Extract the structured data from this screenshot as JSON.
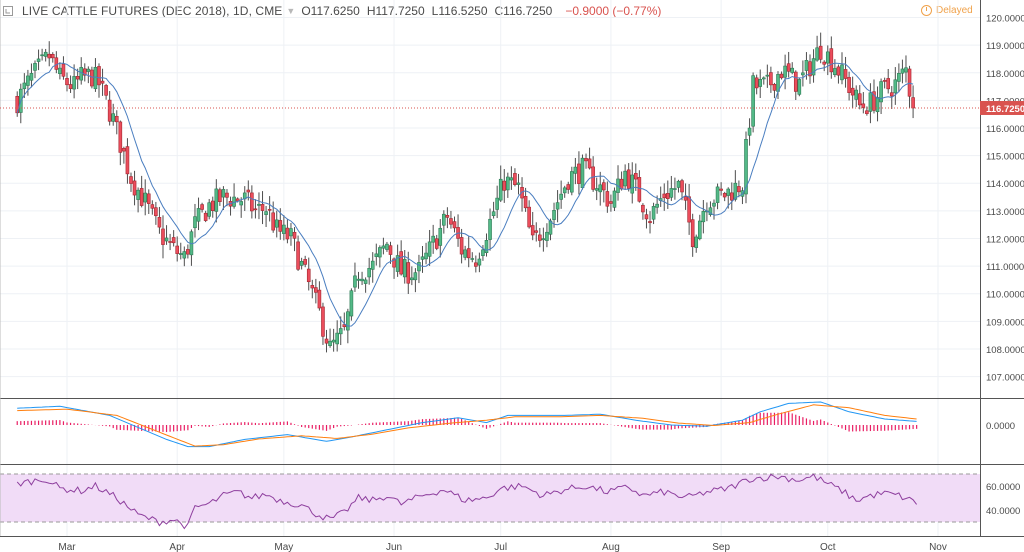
{
  "header": {
    "title": "LIVE CATTLE FUTURES (DEC 2018), 1D, CME",
    "open": "O117.6250",
    "high": "H117.7250",
    "low": "L116.5250",
    "close": "C116.7250",
    "change": "−0.9000 (−0.77%)"
  },
  "status": {
    "delayed": "Delayed"
  },
  "colors": {
    "up": "#53b987",
    "down": "#eb4d5c",
    "up_border": "#2d7a54",
    "down_border": "#a3262f",
    "ma": "#4a7ec0",
    "macd": "#2196f3",
    "signal": "#ff7f0e",
    "hist": "#e91e63",
    "rsi": "#8e3f9e",
    "rsi_band": "#f1dcf7",
    "last_price": "#d9534f"
  },
  "chart_data": [
    {
      "type": "candlestick",
      "title": "LIVE CATTLE FUTURES (DEC 2018), 1D, CME",
      "x_axis_labels": [
        "Mar",
        "Apr",
        "May",
        "Jun",
        "Jul",
        "Aug",
        "Sep",
        "Oct",
        "Nov"
      ],
      "x_label_positions_days": [
        10,
        41,
        71,
        102,
        132,
        163,
        194,
        224,
        255
      ],
      "ylim": [
        106.5,
        120.2
      ],
      "y_ticks": [
        "120.0000",
        "119.0000",
        "118.0000",
        "117.0000",
        "116.0000",
        "115.0000",
        "114.0000",
        "113.0000",
        "112.0000",
        "111.0000",
        "110.0000",
        "109.0000",
        "108.0000",
        "107.0000"
      ],
      "y_tick_values": [
        120,
        119,
        118,
        117,
        116,
        115,
        114,
        113,
        112,
        111,
        110,
        109,
        108,
        107
      ],
      "last_price": 116.725,
      "last_price_label": "116.7250",
      "moving_average_days": 10,
      "close_path": [
        [
          -4,
          117.0
        ],
        [
          0,
          117.8
        ],
        [
          5,
          118.6
        ],
        [
          8,
          117.8
        ],
        [
          12,
          117.5
        ],
        [
          14,
          117.8
        ],
        [
          17,
          117.9
        ],
        [
          19,
          117.6
        ],
        [
          23,
          116.3
        ],
        [
          28,
          114.2
        ],
        [
          32,
          113.3
        ],
        [
          36,
          112.2
        ],
        [
          40,
          111.6
        ],
        [
          43,
          111.3
        ],
        [
          46,
          112.5
        ],
        [
          50,
          113.2
        ],
        [
          54,
          113.5
        ],
        [
          60,
          113.4
        ],
        [
          63,
          113.0
        ],
        [
          66,
          113.1
        ],
        [
          69,
          112.3
        ],
        [
          73,
          112.0
        ],
        [
          76,
          111.0
        ],
        [
          81,
          109.3
        ],
        [
          84,
          108.0
        ],
        [
          88,
          108.6
        ],
        [
          92,
          110.8
        ],
        [
          96,
          111.0
        ],
        [
          100,
          111.8
        ],
        [
          104,
          110.8
        ],
        [
          109,
          110.8
        ],
        [
          113,
          111.8
        ],
        [
          117,
          112.8
        ],
        [
          121,
          111.6
        ],
        [
          125,
          111.3
        ],
        [
          129,
          112.6
        ],
        [
          133,
          114.1
        ],
        [
          137,
          113.8
        ],
        [
          141,
          111.8
        ],
        [
          146,
          112.8
        ],
        [
          151,
          114.2
        ],
        [
          155,
          114.5
        ],
        [
          159,
          114.0
        ],
        [
          163,
          113.3
        ],
        [
          167,
          114.4
        ],
        [
          170,
          113.8
        ],
        [
          174,
          112.8
        ],
        [
          178,
          113.6
        ],
        [
          182,
          113.9
        ],
        [
          186,
          112.1
        ],
        [
          190,
          113.4
        ],
        [
          195,
          113.6
        ],
        [
          200,
          114.0
        ],
        [
          203,
          117.5
        ],
        [
          207,
          117.5
        ],
        [
          211,
          118.1
        ],
        [
          216,
          117.6
        ],
        [
          220,
          118.5
        ],
        [
          222,
          118.9
        ],
        [
          226,
          118.3
        ],
        [
          230,
          117.5
        ],
        [
          233,
          116.8
        ],
        [
          236,
          116.9
        ],
        [
          240,
          117.4
        ],
        [
          243,
          117.6
        ],
        [
          246,
          118.1
        ],
        [
          248,
          116.725
        ]
      ],
      "macd": {
        "ylim": [
          -1.5,
          1.0
        ],
        "y_tick": "0.0000",
        "macd_line": [
          [
            -4,
            0.7
          ],
          [
            8,
            0.78
          ],
          [
            22,
            0.4
          ],
          [
            38,
            -0.6
          ],
          [
            44,
            -0.9
          ],
          [
            50,
            -0.9
          ],
          [
            60,
            -0.6
          ],
          [
            72,
            -0.4
          ],
          [
            83,
            -0.68
          ],
          [
            90,
            -0.5
          ],
          [
            100,
            -0.2
          ],
          [
            110,
            0.1
          ],
          [
            120,
            0.3
          ],
          [
            128,
            0.1
          ],
          [
            134,
            0.4
          ],
          [
            142,
            0.4
          ],
          [
            150,
            0.4
          ],
          [
            160,
            0.45
          ],
          [
            170,
            0.2
          ],
          [
            180,
            0.0
          ],
          [
            190,
            -0.05
          ],
          [
            200,
            0.2
          ],
          [
            205,
            0.55
          ],
          [
            213,
            0.9
          ],
          [
            222,
            0.96
          ],
          [
            230,
            0.55
          ],
          [
            240,
            0.25
          ],
          [
            249,
            0.15
          ]
        ],
        "signal_line": [
          [
            -4,
            0.6
          ],
          [
            10,
            0.66
          ],
          [
            24,
            0.4
          ],
          [
            36,
            -0.3
          ],
          [
            46,
            -0.88
          ],
          [
            54,
            -0.82
          ],
          [
            64,
            -0.58
          ],
          [
            76,
            -0.45
          ],
          [
            86,
            -0.56
          ],
          [
            96,
            -0.38
          ],
          [
            106,
            -0.12
          ],
          [
            118,
            0.08
          ],
          [
            128,
            0.2
          ],
          [
            136,
            0.34
          ],
          [
            148,
            0.34
          ],
          [
            160,
            0.4
          ],
          [
            172,
            0.28
          ],
          [
            182,
            0.08
          ],
          [
            192,
            -0.02
          ],
          [
            202,
            0.1
          ],
          [
            210,
            0.45
          ],
          [
            220,
            0.84
          ],
          [
            230,
            0.72
          ],
          [
            240,
            0.4
          ],
          [
            249,
            0.25
          ]
        ]
      },
      "rsi": {
        "ylim": [
          20,
          75
        ],
        "bands": [
          70,
          30
        ],
        "y_ticks": [
          "60.0000",
          "40.0000"
        ],
        "y_tick_values": [
          60,
          40
        ],
        "rsi_line": [
          [
            -4,
            62
          ],
          [
            4,
            66
          ],
          [
            8,
            58
          ],
          [
            14,
            56
          ],
          [
            18,
            60
          ],
          [
            24,
            50
          ],
          [
            30,
            36
          ],
          [
            36,
            30
          ],
          [
            40,
            32
          ],
          [
            44,
            26
          ],
          [
            46,
            42
          ],
          [
            50,
            45
          ],
          [
            54,
            52
          ],
          [
            58,
            55
          ],
          [
            62,
            50
          ],
          [
            66,
            53
          ],
          [
            70,
            48
          ],
          [
            76,
            44
          ],
          [
            80,
            37
          ],
          [
            84,
            32
          ],
          [
            88,
            38
          ],
          [
            92,
            50
          ],
          [
            96,
            48
          ],
          [
            100,
            52
          ],
          [
            104,
            45
          ],
          [
            110,
            52
          ],
          [
            116,
            57
          ],
          [
            122,
            48
          ],
          [
            128,
            50
          ],
          [
            132,
            58
          ],
          [
            138,
            60
          ],
          [
            144,
            52
          ],
          [
            150,
            57
          ],
          [
            156,
            60
          ],
          [
            162,
            55
          ],
          [
            168,
            59
          ],
          [
            172,
            52
          ],
          [
            178,
            55
          ],
          [
            184,
            50
          ],
          [
            190,
            55
          ],
          [
            196,
            58
          ],
          [
            202,
            66
          ],
          [
            210,
            68
          ],
          [
            216,
            65
          ],
          [
            220,
            68
          ],
          [
            224,
            62
          ],
          [
            228,
            56
          ],
          [
            232,
            48
          ],
          [
            236,
            52
          ],
          [
            240,
            54
          ],
          [
            244,
            52
          ],
          [
            249,
            46
          ]
        ]
      }
    }
  ]
}
